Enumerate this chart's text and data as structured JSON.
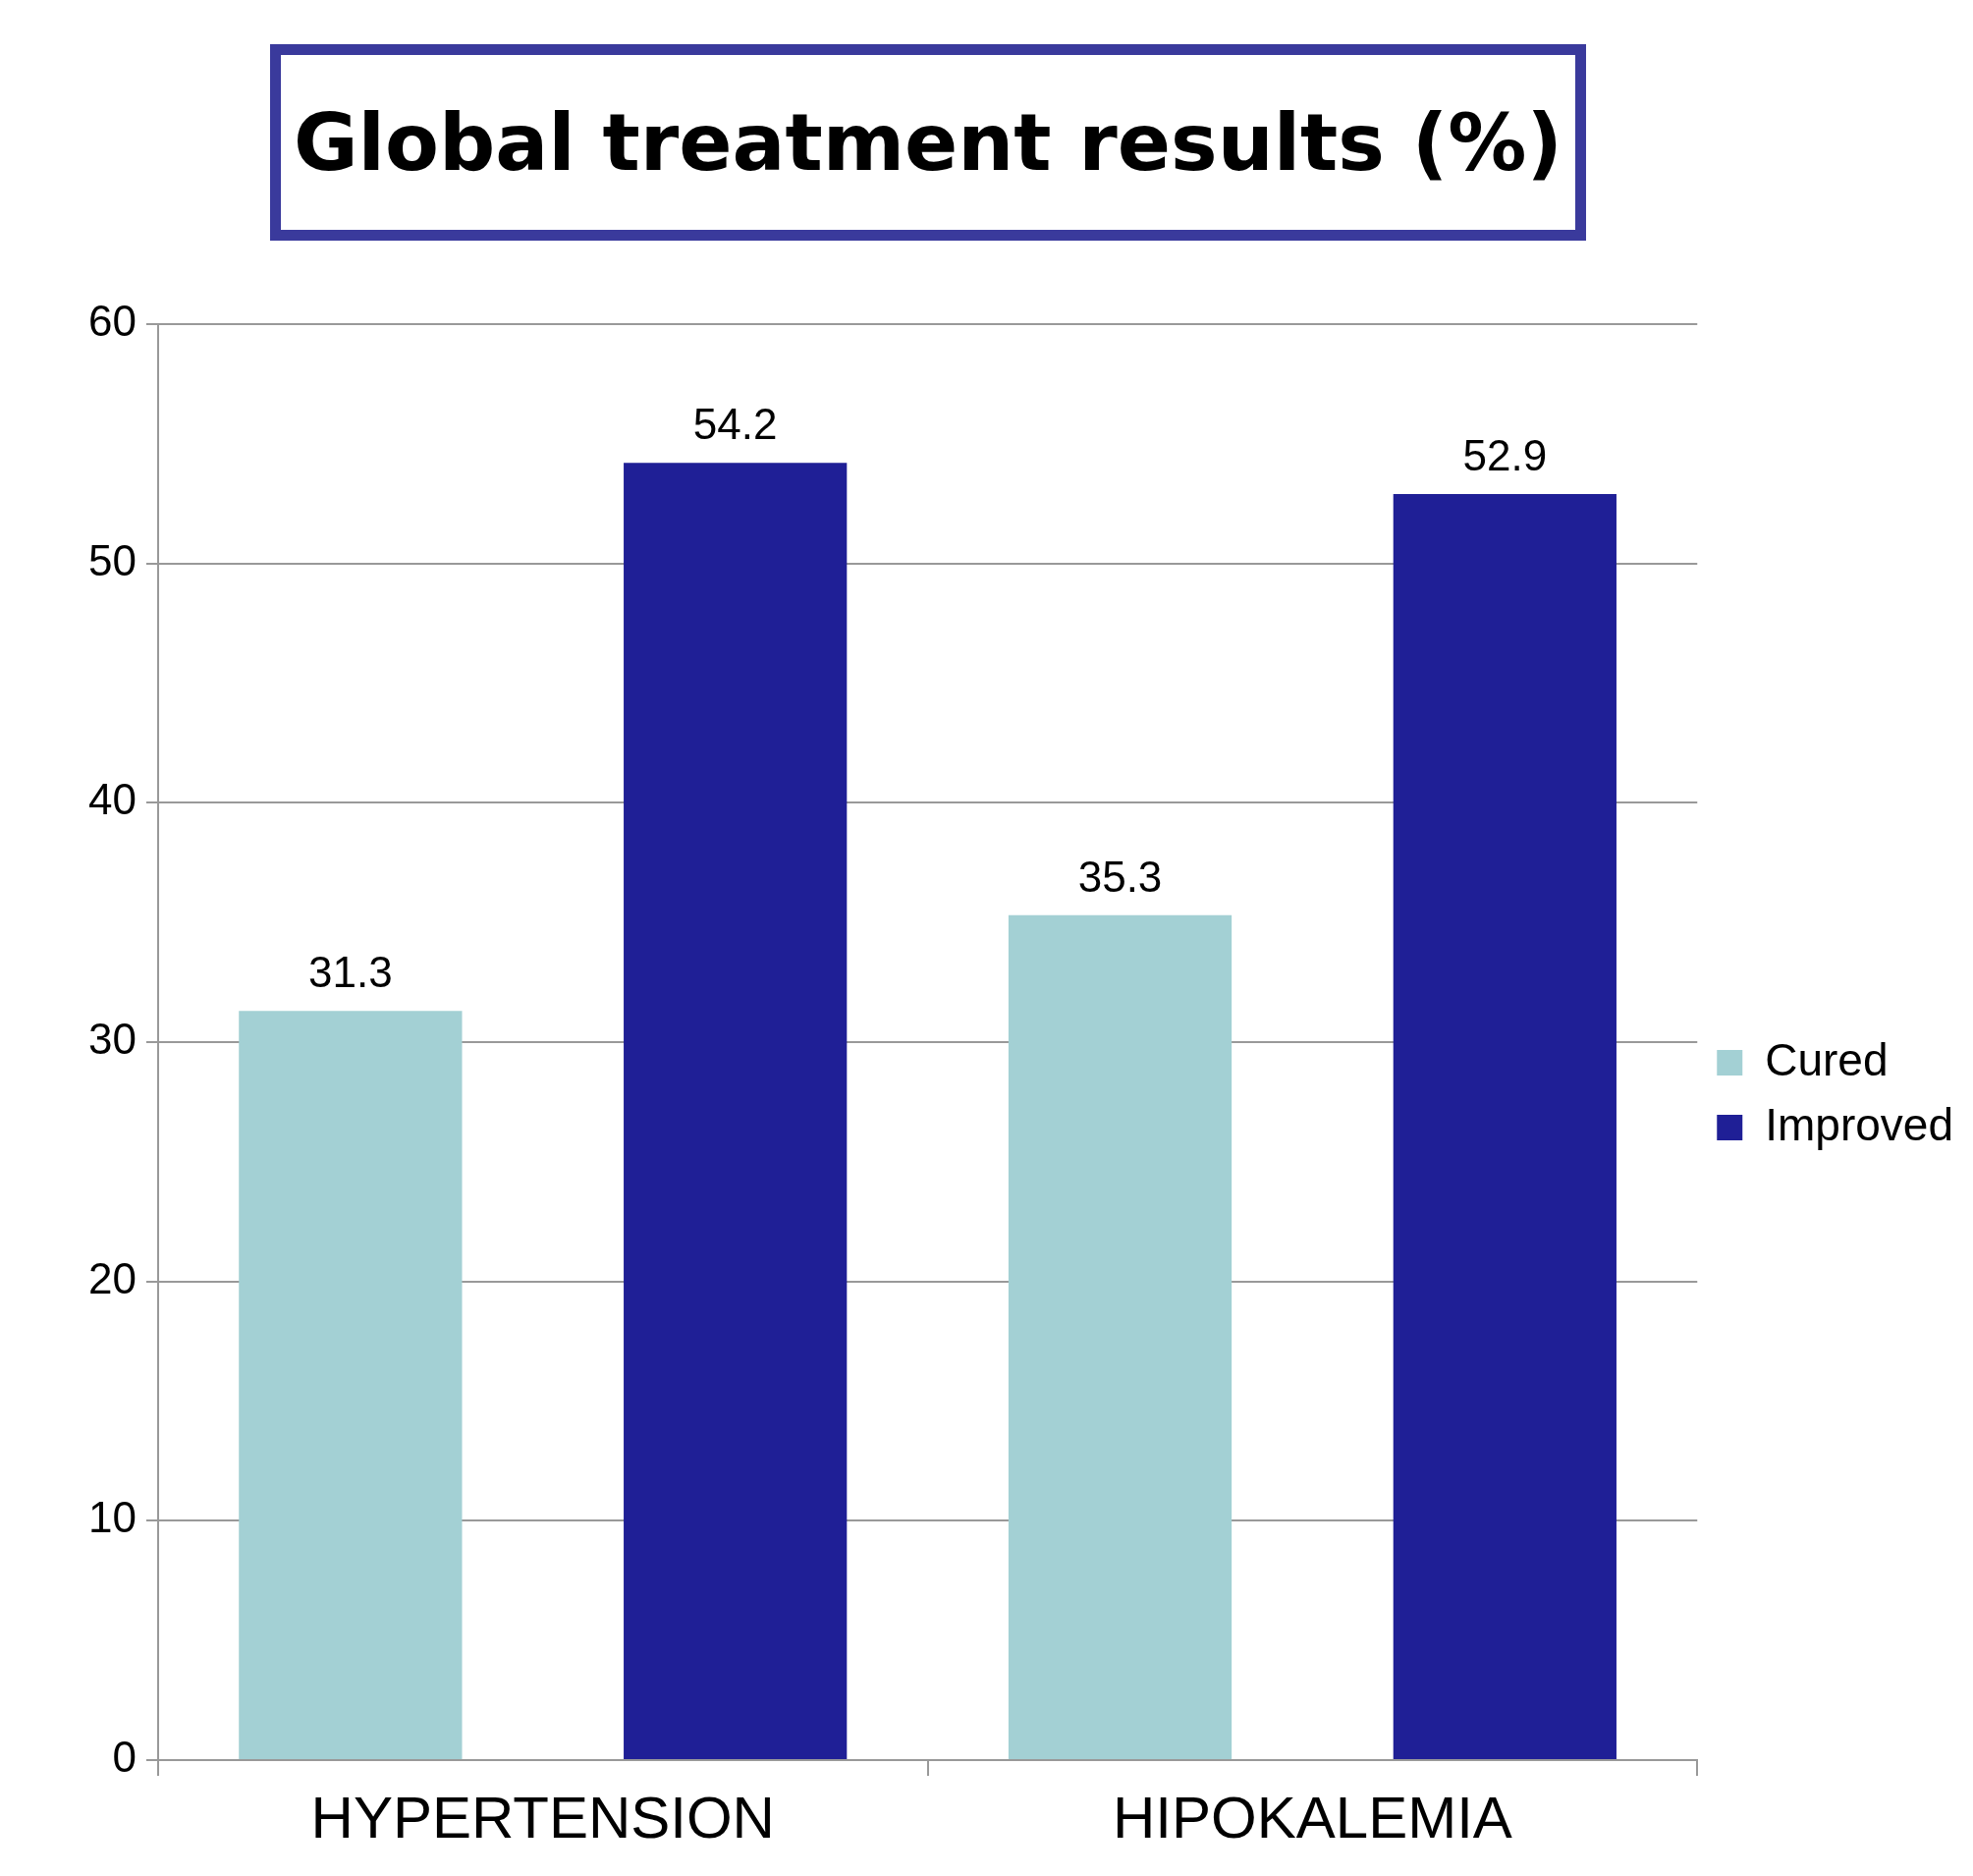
{
  "chart_data": {
    "type": "bar",
    "title": "Global treatment results (%)",
    "categories": [
      "HYPERTENSION",
      "HIPOKALEMIA"
    ],
    "series": [
      {
        "name": "Cured",
        "color": "#a3d0d4",
        "values": [
          31.3,
          35.3
        ]
      },
      {
        "name": "Improved",
        "color": "#1f1f96",
        "values": [
          54.2,
          52.9
        ]
      }
    ],
    "ylim": [
      0,
      60
    ],
    "yticks": [
      0,
      10,
      20,
      30,
      40,
      50,
      60
    ],
    "grid": "y",
    "legend": "right",
    "data_labels": true
  }
}
